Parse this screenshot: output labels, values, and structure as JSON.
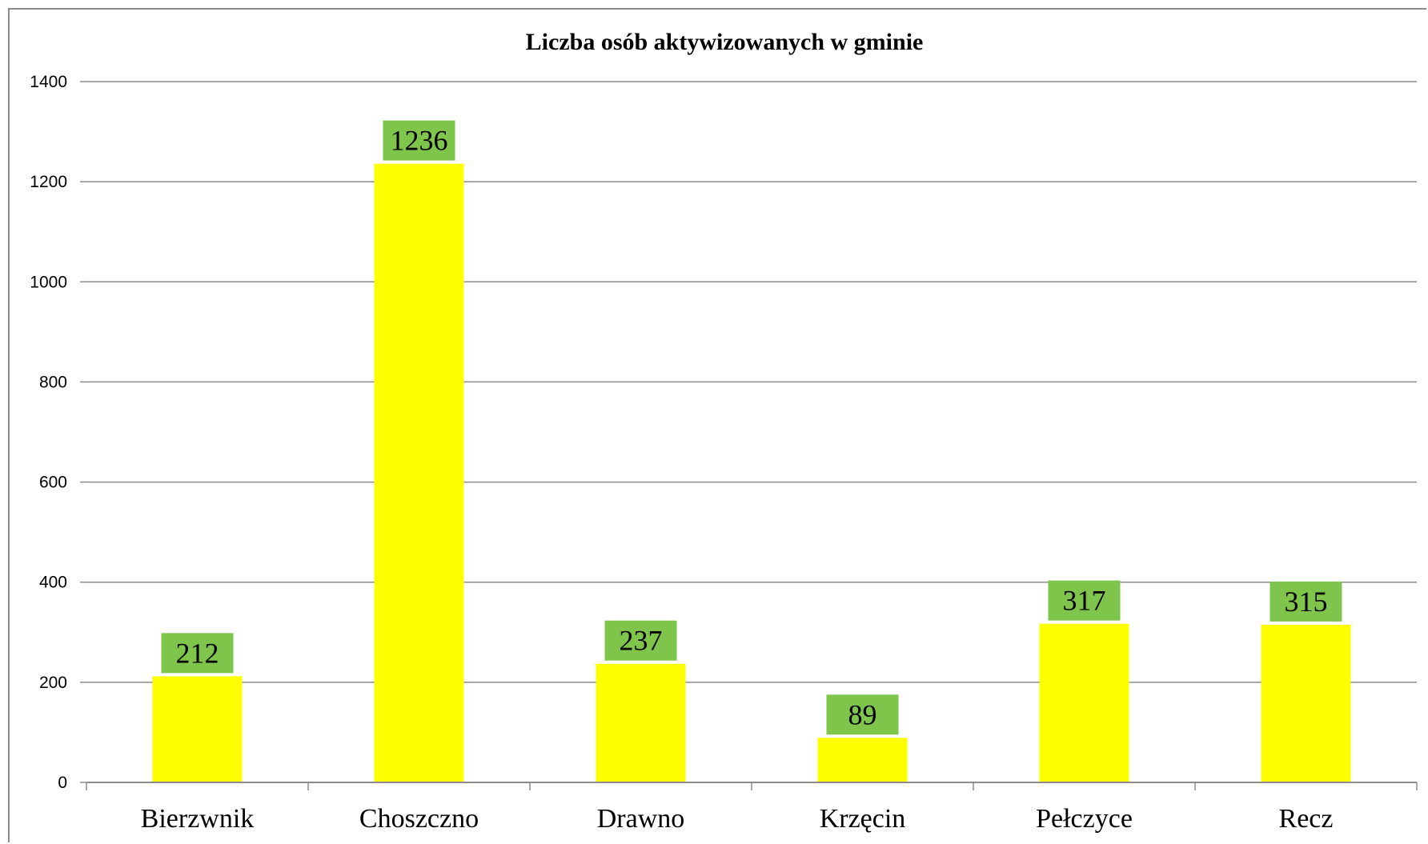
{
  "chart_data": {
    "type": "bar",
    "title": "Liczba osób aktywizowanych w gminie",
    "categories": [
      "Bierzwnik",
      "Choszczno",
      "Drawno",
      "Krzęcin",
      "Pełczyce",
      "Recz"
    ],
    "values": [
      212,
      1236,
      237,
      89,
      317,
      315
    ],
    "data_labels": [
      "212",
      "1236",
      "237",
      "89",
      "317",
      "315"
    ],
    "yticks": [
      "0",
      "200",
      "400",
      "600",
      "800",
      "1000",
      "1200",
      "1400"
    ],
    "ylim": [
      0,
      1400
    ],
    "grid": true,
    "legend": "none",
    "colors": {
      "bar": "#ffff00",
      "label_bg": "#7fc54c",
      "grid": "#8c8c8c"
    }
  }
}
